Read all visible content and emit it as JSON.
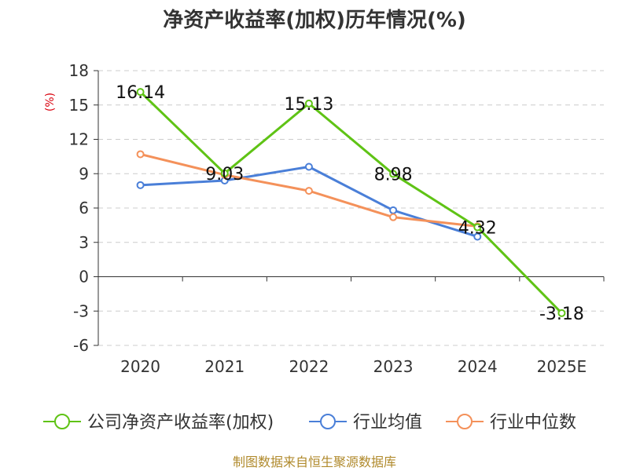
{
  "chart_data": {
    "type": "line",
    "title": "净资产收益率(加权)历年情况(%)",
    "xlabel": "",
    "ylabel": "(%)",
    "categories": [
      "2020",
      "2021",
      "2022",
      "2023",
      "2024",
      "2025E"
    ],
    "ylim": [
      -6,
      18
    ],
    "yticks": [
      -6,
      -3,
      0,
      3,
      6,
      9,
      12,
      15,
      18
    ],
    "grid": true,
    "legend_position": "bottom",
    "series": [
      {
        "name": "公司净资产收益率(加权)",
        "color": "#5fc315",
        "values": [
          16.14,
          9.03,
          15.13,
          8.98,
          4.32,
          -3.18
        ],
        "labels": [
          "16.14",
          "9.03",
          "15.13",
          "8.98",
          "4.32",
          "-3.18"
        ]
      },
      {
        "name": "行业均值",
        "color": "#4a7fd8",
        "values": [
          8.0,
          8.4,
          9.6,
          5.8,
          3.5,
          null
        ]
      },
      {
        "name": "行业中位数",
        "color": "#f4915a",
        "values": [
          10.7,
          8.9,
          7.5,
          5.2,
          4.4,
          null
        ]
      }
    ]
  },
  "source": "制图数据来自恒生聚源数据库"
}
